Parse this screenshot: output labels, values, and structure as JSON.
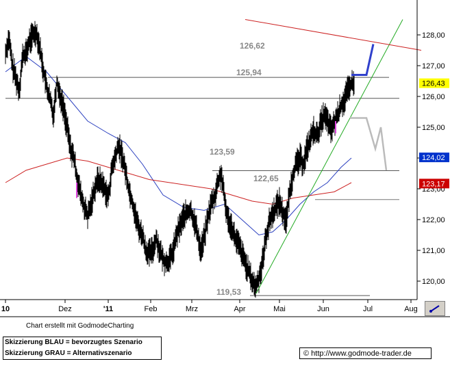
{
  "chart_data": {
    "type": "candlestick",
    "y_axis": {
      "position": "right",
      "range": [
        119.5,
        128.5
      ],
      "ticks": [
        "120,00",
        "121,00",
        "122,00",
        "123,00",
        "124,00",
        "125,00",
        "126,00",
        "127,00",
        "128,00"
      ],
      "tick_values": [
        120,
        121,
        122,
        123,
        124,
        125,
        126,
        127,
        128
      ]
    },
    "x_axis": {
      "ticks": [
        "10",
        "Dez",
        "'11",
        "Feb",
        "Mrz",
        "Apr",
        "Mai",
        "Jun",
        "Jul",
        "Aug"
      ]
    },
    "grid": false,
    "current_markers": [
      {
        "label": "126,43",
        "value": 126.43,
        "color": "#ffff00"
      },
      {
        "label": "124,02",
        "value": 124.02,
        "color": "#0033cc"
      },
      {
        "label": "123,17",
        "value": 123.17,
        "color": "#cc0000"
      }
    ],
    "levels": [
      {
        "label": "126,62",
        "value": 126.62
      },
      {
        "label": "125,94",
        "value": 125.94
      },
      {
        "label": "123,59",
        "value": 123.59
      },
      {
        "label": "122,65",
        "value": 122.65
      },
      {
        "label": "119,53",
        "value": 119.53
      }
    ],
    "price_series": [
      [
        0,
        127.4
      ],
      [
        5,
        127.9
      ],
      [
        10,
        127.0
      ],
      [
        15,
        126.6
      ],
      [
        20,
        126.2
      ],
      [
        25,
        127.3
      ],
      [
        30,
        127.4
      ],
      [
        35,
        127.8
      ],
      [
        40,
        128.0
      ],
      [
        45,
        128.1
      ],
      [
        50,
        127.6
      ],
      [
        55,
        126.9
      ],
      [
        60,
        126.3
      ],
      [
        65,
        125.9
      ],
      [
        70,
        125.4
      ],
      [
        75,
        126.5
      ],
      [
        80,
        126.0
      ],
      [
        85,
        125.6
      ],
      [
        90,
        125.0
      ],
      [
        95,
        124.3
      ],
      [
        100,
        124.0
      ],
      [
        105,
        123.3
      ],
      [
        110,
        122.8
      ],
      [
        115,
        122.4
      ],
      [
        120,
        122.1
      ],
      [
        125,
        122.5
      ],
      [
        130,
        123.0
      ],
      [
        135,
        123.3
      ],
      [
        140,
        123.2
      ],
      [
        145,
        123.0
      ],
      [
        150,
        122.7
      ],
      [
        155,
        123.6
      ],
      [
        160,
        124.0
      ],
      [
        165,
        124.4
      ],
      [
        170,
        124.1
      ],
      [
        175,
        123.6
      ],
      [
        180,
        123.0
      ],
      [
        185,
        122.6
      ],
      [
        190,
        122.1
      ],
      [
        195,
        121.7
      ],
      [
        200,
        121.5
      ],
      [
        205,
        121.0
      ],
      [
        210,
        120.9
      ],
      [
        215,
        121.0
      ],
      [
        220,
        121.4
      ],
      [
        225,
        121.0
      ],
      [
        230,
        120.7
      ],
      [
        235,
        120.6
      ],
      [
        240,
        120.7
      ],
      [
        245,
        121.0
      ],
      [
        250,
        121.5
      ],
      [
        255,
        121.8
      ],
      [
        260,
        122.1
      ],
      [
        265,
        122.2
      ],
      [
        270,
        122.3
      ],
      [
        275,
        122.0
      ],
      [
        280,
        121.6
      ],
      [
        285,
        121.0
      ],
      [
        290,
        121.4
      ],
      [
        295,
        122.0
      ],
      [
        300,
        122.5
      ],
      [
        305,
        122.7
      ],
      [
        310,
        123.2
      ],
      [
        315,
        123.5
      ],
      [
        320,
        122.6
      ],
      [
        325,
        122.0
      ],
      [
        330,
        121.8
      ],
      [
        335,
        121.4
      ],
      [
        340,
        121.2
      ],
      [
        345,
        120.9
      ],
      [
        350,
        120.6
      ],
      [
        355,
        120.3
      ],
      [
        360,
        120.0
      ],
      [
        365,
        119.8
      ],
      [
        370,
        120.1
      ],
      [
        375,
        120.6
      ],
      [
        380,
        121.4
      ],
      [
        385,
        121.9
      ],
      [
        390,
        122.2
      ],
      [
        395,
        122.4
      ],
      [
        400,
        122.6
      ],
      [
        405,
        122.2
      ],
      [
        410,
        122.0
      ],
      [
        415,
        122.9
      ],
      [
        420,
        123.5
      ],
      [
        425,
        123.8
      ],
      [
        430,
        124.0
      ],
      [
        435,
        123.8
      ],
      [
        440,
        124.3
      ],
      [
        445,
        124.6
      ],
      [
        450,
        124.9
      ],
      [
        455,
        124.7
      ],
      [
        460,
        125.1
      ],
      [
        465,
        125.4
      ],
      [
        470,
        125.2
      ],
      [
        475,
        124.9
      ],
      [
        480,
        125.1
      ],
      [
        485,
        125.4
      ],
      [
        490,
        125.7
      ],
      [
        495,
        125.9
      ],
      [
        500,
        126.2
      ],
      [
        505,
        126.4
      ]
    ],
    "series": [
      {
        "values": [
          [
            0,
            126.8
          ],
          [
            30,
            127.3
          ],
          [
            60,
            126.8
          ],
          [
            90,
            126.0
          ],
          [
            120,
            125.2
          ],
          [
            150,
            124.8
          ],
          [
            175,
            124.5
          ],
          [
            200,
            123.8
          ],
          [
            230,
            122.8
          ],
          [
            260,
            122.4
          ],
          [
            290,
            122.3
          ],
          [
            320,
            122.5
          ],
          [
            345,
            122.0
          ],
          [
            370,
            121.5
          ],
          [
            390,
            121.6
          ],
          [
            410,
            122.0
          ],
          [
            430,
            122.5
          ],
          [
            450,
            122.9
          ],
          [
            470,
            123.2
          ],
          [
            490,
            123.7
          ],
          [
            505,
            124.0
          ]
        ],
        "color": "#2a3fbf"
      },
      {
        "values": [
          [
            0,
            123.2
          ],
          [
            30,
            123.6
          ],
          [
            60,
            123.8
          ],
          [
            90,
            124.0
          ],
          [
            120,
            123.9
          ],
          [
            150,
            123.7
          ],
          [
            180,
            123.5
          ],
          [
            210,
            123.3
          ],
          [
            240,
            123.2
          ],
          [
            270,
            123.1
          ],
          [
            300,
            123.0
          ],
          [
            330,
            122.8
          ],
          [
            360,
            122.6
          ],
          [
            390,
            122.5
          ],
          [
            420,
            122.7
          ],
          [
            450,
            122.8
          ],
          [
            480,
            122.9
          ],
          [
            505,
            123.2
          ]
        ],
        "color": "#cc2020"
      }
    ],
    "trendlines": [
      {
        "name_hint": "green uptrend",
        "color": "#22aa22",
        "from": [
          366,
          119.6
        ],
        "to": [
          580,
          128.5
        ]
      },
      {
        "name_hint": "red downtrend",
        "color": "#cc2020",
        "from": [
          350,
          128.5
        ],
        "to": [
          607,
          127.5
        ]
      }
    ],
    "scenarios": [
      {
        "color": "#3040cc",
        "points": [
          [
            505,
            126.7
          ],
          [
            527,
            126.7
          ],
          [
            537,
            127.7
          ]
        ]
      },
      {
        "color": "#bbbbbb",
        "points": [
          [
            503,
            125.3
          ],
          [
            527,
            125.3
          ],
          [
            540,
            124.3
          ],
          [
            548,
            125.0
          ],
          [
            556,
            123.6
          ]
        ]
      }
    ]
  },
  "footer": {
    "credit": "Chart erstellt mit GodmodeCharting",
    "legend_line1": "Skizzierung BLAU = bevorzugtes Szenario",
    "legend_line2": "Skizzierung GRAU = Alternativszenario",
    "url": "© http://www.godmode-trader.de"
  }
}
